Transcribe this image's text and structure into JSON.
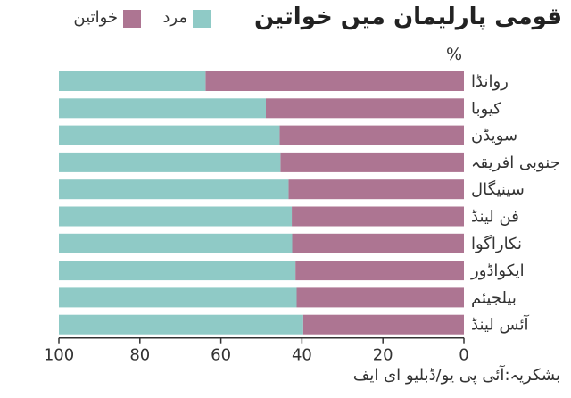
{
  "title": "قومی پارلیمان میں خواتین",
  "legend": {
    "men_label": "مرد",
    "women_label": "خواتین"
  },
  "unit_label": "%",
  "source": "بشکریہ:آئی پی یو/ڈبلیو ای ایف",
  "colors": {
    "men": "#8fcac6",
    "women": "#ad7592",
    "axis": "#333333"
  },
  "chart_data": {
    "type": "bar",
    "orientation": "horizontal",
    "stacked": true,
    "categories": [
      "روانڈا",
      "کیوبا",
      "سویڈن",
      "جنوبی افریقہ",
      "سینیگال",
      "فن لینڈ",
      "نکاراگوا",
      "ایکواڈور",
      "بیلجیئم",
      "آئس لینڈ"
    ],
    "series": [
      {
        "name": "خواتین",
        "values": [
          63.8,
          48.9,
          45.5,
          45.3,
          43.3,
          42.5,
          42.4,
          41.6,
          41.3,
          39.7
        ]
      },
      {
        "name": "مرد",
        "values": [
          36.2,
          51.1,
          54.5,
          54.7,
          56.7,
          57.5,
          57.6,
          58.4,
          58.7,
          60.3
        ]
      }
    ],
    "xlim": [
      100,
      0
    ],
    "ticks": [
      "100",
      "80",
      "60",
      "40",
      "20",
      "0"
    ],
    "xlabel": "%",
    "ylabel": "",
    "grid": false,
    "legend_position": "top-left"
  }
}
